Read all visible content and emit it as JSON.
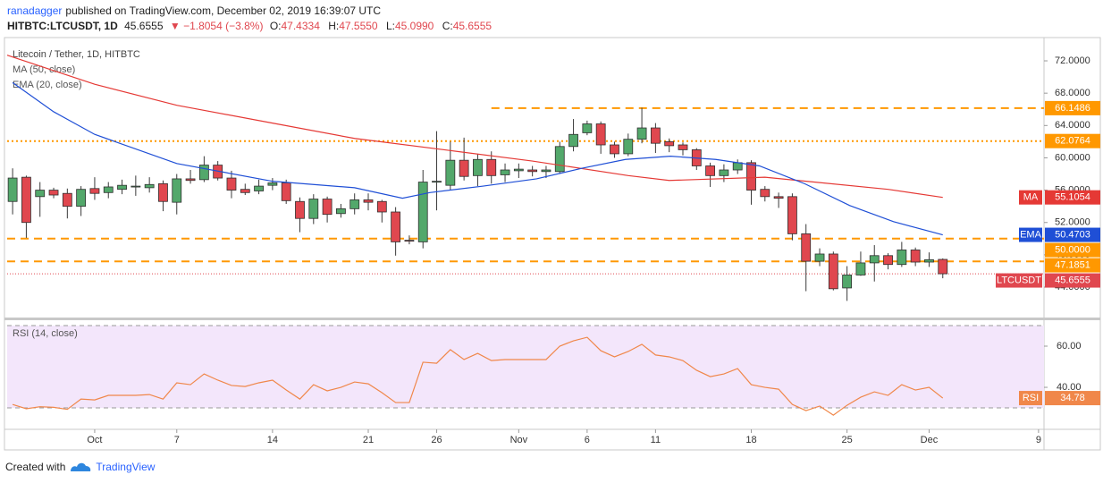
{
  "header": {
    "author": "ranadagger",
    "published": "published on TradingView.com, December 02, 2019 16:39:07 UTC",
    "symbol": "HITBTC:LTCUSDT, 1D",
    "last": "45.6555",
    "change": "▼ −1.8054 (−3.8%)",
    "ohlc": [
      {
        "label": "O:",
        "value": "47.4334"
      },
      {
        "label": "H:",
        "value": "47.5550"
      },
      {
        "label": "L:",
        "value": "45.0990"
      },
      {
        "label": "C:",
        "value": "45.6555"
      }
    ]
  },
  "chart_data": [
    {
      "type": "candlestick",
      "title": "Litecoin / Tether, 1D, HITBTC",
      "open": [
        54.6,
        57.6,
        55.2,
        56.0,
        55.6,
        54.0,
        56.2,
        55.7,
        56.1,
        56.4,
        56.3,
        56.8,
        54.5,
        57.4,
        57.3,
        59.1,
        57.5,
        56.1,
        55.9,
        56.6,
        56.9,
        54.6,
        52.5,
        54.9,
        53.1,
        53.7,
        54.8,
        54.6,
        53.3,
        49.8,
        49.6,
        57.0,
        56.6,
        59.7,
        57.8,
        59.8,
        57.9,
        58.4,
        58.5,
        58.3,
        58.3,
        61.4,
        63.1,
        64.2,
        61.6,
        60.5,
        62.3,
        63.7,
        62.0,
        61.6,
        61.0,
        59.0,
        57.8,
        58.5,
        59.4,
        56.1,
        55.2,
        55.2,
        50.6,
        47.2,
        48.1,
        43.9,
        45.5,
        47.0,
        47.9,
        46.8,
        48.6,
        47.1,
        47.4334
      ],
      "high": [
        58.7,
        57.8,
        57.0,
        56.3,
        56.2,
        56.5,
        57.6,
        57.0,
        57.3,
        57.8,
        57.6,
        57.2,
        58.0,
        58.5,
        60.2,
        59.6,
        58.4,
        56.8,
        57.3,
        57.5,
        57.3,
        55.1,
        55.5,
        55.2,
        54.3,
        55.6,
        55.6,
        54.8,
        53.9,
        50.4,
        58.5,
        63.3,
        62.0,
        62.5,
        60.5,
        60.8,
        59.3,
        59.3,
        59.0,
        59.0,
        62.0,
        64.8,
        64.6,
        64.5,
        62.0,
        63.0,
        66.2,
        64.3,
        62.4,
        61.9,
        61.2,
        59.4,
        59.2,
        59.8,
        59.7,
        56.5,
        55.7,
        55.6,
        51.8,
        48.8,
        48.4,
        46.6,
        48.4,
        49.2,
        48.2,
        49.6,
        48.9,
        48.3,
        47.555
      ],
      "low": [
        53.0,
        50.1,
        52.7,
        55.0,
        52.5,
        52.8,
        54.8,
        55.0,
        55.5,
        55.3,
        55.7,
        53.4,
        53.0,
        56.8,
        57.0,
        57.2,
        55.0,
        55.4,
        55.5,
        56.0,
        54.3,
        50.8,
        51.8,
        52.0,
        52.6,
        53.0,
        53.5,
        52.0,
        47.9,
        49.3,
        48.8,
        53.5,
        56.0,
        57.2,
        56.5,
        56.8,
        57.0,
        57.5,
        57.7,
        57.5,
        58.0,
        60.8,
        62.8,
        60.5,
        60.0,
        60.2,
        61.8,
        60.6,
        60.7,
        60.3,
        58.5,
        56.4,
        57.0,
        58.0,
        54.2,
        54.6,
        53.8,
        49.8,
        43.5,
        46.6,
        43.6,
        42.3,
        45.4,
        44.7,
        46.2,
        46.5,
        46.6,
        46.5,
        45.099
      ],
      "close": [
        57.5,
        52.0,
        56.0,
        55.4,
        54.0,
        56.1,
        55.6,
        56.4,
        56.6,
        56.5,
        56.7,
        54.6,
        57.4,
        57.2,
        59.1,
        57.5,
        56.0,
        55.7,
        56.5,
        56.9,
        54.7,
        52.5,
        54.9,
        53.0,
        53.7,
        54.8,
        54.5,
        53.3,
        49.6,
        49.7,
        57.0,
        57.1,
        59.7,
        57.7,
        59.8,
        57.8,
        58.5,
        58.6,
        58.3,
        58.5,
        61.4,
        62.9,
        64.2,
        61.6,
        60.5,
        62.3,
        63.7,
        61.8,
        61.5,
        61.0,
        59.0,
        57.8,
        58.5,
        59.4,
        56.0,
        55.2,
        55.0,
        50.6,
        47.2,
        48.1,
        43.8,
        45.5,
        47.0,
        47.9,
        46.8,
        48.6,
        47.1,
        47.4,
        45.6555
      ],
      "up_color": "#53a86b",
      "down_color": "#e0474f",
      "wick_color": "#3a3a3a",
      "xlim": [
        -0.4,
        75.4
      ],
      "xticks": [
        {
          "value": 6,
          "label": "Oct"
        },
        {
          "value": 12,
          "label": "7"
        },
        {
          "value": 19,
          "label": "14"
        },
        {
          "value": 26,
          "label": "21"
        },
        {
          "value": 31,
          "label": "26"
        },
        {
          "value": 37,
          "label": "Nov"
        },
        {
          "value": 42,
          "label": "6"
        },
        {
          "value": 47,
          "label": "11"
        },
        {
          "value": 54,
          "label": "18"
        },
        {
          "value": 61,
          "label": "25"
        },
        {
          "value": 67,
          "label": "Dec"
        },
        {
          "value": 75,
          "label": "9"
        }
      ],
      "ylim": [
        40.24,
        74.88
      ],
      "yticks": [
        {
          "value": 44,
          "label": "44.0000"
        },
        {
          "value": 48,
          "label": "48.0000"
        },
        {
          "value": 52,
          "label": "52.0000"
        },
        {
          "value": 56,
          "label": "56.0000"
        },
        {
          "value": 60,
          "label": "60.0000"
        },
        {
          "value": 64,
          "label": "64.0000"
        },
        {
          "value": 68,
          "label": "68.0000"
        },
        {
          "value": 72,
          "label": "72.0000"
        }
      ],
      "overlays": [
        {
          "name": "MA (50, close)",
          "badge": "MA",
          "color": "#e53935",
          "x": [
            -0.4,
            6,
            12,
            19,
            25,
            32,
            38,
            45,
            48,
            55,
            58,
            64,
            68
          ],
          "values": [
            72.7,
            69.1,
            66.5,
            64.3,
            62.4,
            60.9,
            59.6,
            57.8,
            57.2,
            57.6,
            57.1,
            56.1,
            55.1054
          ]
        },
        {
          "name": "EMA (20, close)",
          "badge": "EMA",
          "color": "#1f4fd6",
          "x": [
            0,
            3,
            6,
            12,
            19,
            25,
            28.5,
            30.5,
            34.4,
            38.3,
            41.6,
            44.8,
            48.1,
            51.4,
            54.6,
            57.9,
            61.2,
            64.4,
            68
          ],
          "values": [
            69.3,
            65.7,
            62.9,
            59.3,
            57.1,
            56.3,
            55.0,
            55.7,
            56.5,
            57.4,
            58.7,
            59.8,
            60.2,
            59.8,
            59.0,
            56.8,
            54.1,
            52.1,
            50.4703
          ]
        }
      ],
      "levels": [
        {
          "value": 66.1486,
          "start": 35,
          "style": "dashed"
        },
        {
          "value": 62.0764,
          "style": "dotted"
        },
        {
          "value": 50,
          "label": "50.0000",
          "style": "dashed"
        },
        {
          "value": 47.1851,
          "style": "dashed"
        }
      ],
      "level_color": "#ff9800",
      "last_price": {
        "name": "LTCUSDT",
        "value": 45.6555,
        "color": "#e0474f"
      }
    },
    {
      "type": "line",
      "title": "RSI (14, close)",
      "badge": "RSI",
      "color": "#f0874a",
      "band": [
        30,
        70
      ],
      "band_color": "#f3e6fb",
      "values": [
        31.7,
        29.6,
        30.6,
        30.3,
        29.3,
        34.3,
        33.9,
        36.1,
        36.1,
        36.1,
        36.5,
        34.3,
        42.2,
        41.3,
        46.5,
        43.5,
        40.9,
        40.4,
        42.2,
        43.5,
        38.7,
        34.3,
        41.3,
        38.3,
        40.0,
        42.6,
        41.7,
        37.4,
        32.6,
        32.6,
        52.2,
        51.7,
        58.3,
        53.5,
        56.5,
        53.0,
        53.5,
        53.5,
        53.5,
        53.5,
        60.0,
        62.6,
        64.3,
        57.8,
        54.8,
        57.4,
        60.9,
        55.7,
        54.8,
        53.0,
        48.3,
        45.2,
        46.5,
        49.1,
        41.3,
        40.0,
        39.1,
        31.7,
        28.7,
        30.9,
        26.5,
        31.3,
        35.2,
        37.8,
        36.1,
        41.3,
        38.7,
        40.0,
        34.78
      ],
      "ylim": [
        19.6,
        72.6
      ],
      "yticks": [
        {
          "value": 40,
          "label": "40.00"
        },
        {
          "value": 60,
          "label": "60.00"
        }
      ]
    }
  ],
  "footer": {
    "created": "Created with",
    "brand": "TradingView"
  }
}
